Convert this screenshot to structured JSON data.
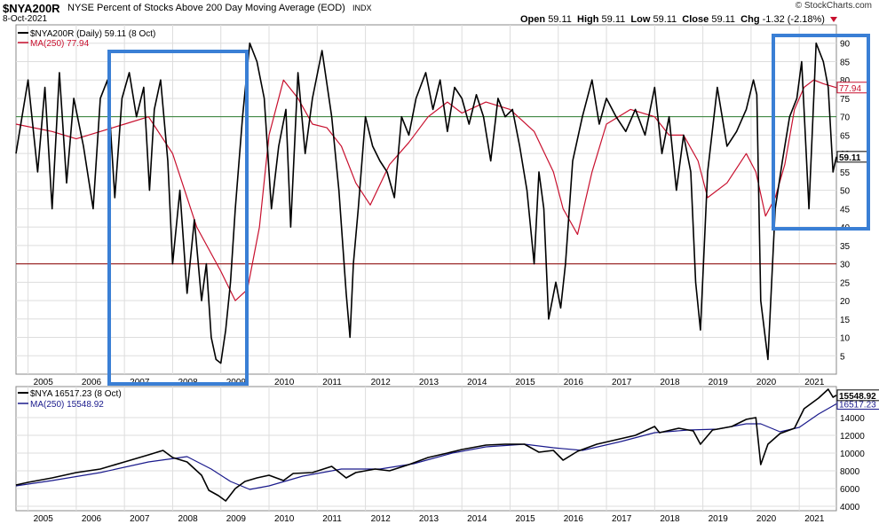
{
  "header": {
    "symbol": "$NYA200R",
    "description": "NYSE Percent of Stocks Above 200 Day Moving Average (EOD)",
    "exchange": "INDX",
    "date": "8-Oct-2021",
    "logo": "© StockCharts.com",
    "open_label": "Open",
    "open": "59.11",
    "high_label": "High",
    "high": "59.11",
    "low_label": "Low",
    "low": "59.11",
    "close_label": "Close",
    "close": "59.11",
    "chg_label": "Chg",
    "chg": "-1.32 (-2.18%)"
  },
  "top_legend": {
    "series": "$NYA200R (Daily) 59.11 (8 Oct)",
    "ma": "MA(250) 77.94"
  },
  "bottom_legend": {
    "series": "$NYA 16517.23 (8 Oct)",
    "ma": "MA(250) 15548.92"
  },
  "colors": {
    "series": "#000000",
    "ma_top": "#c8102e",
    "ma_bottom": "#1a1a8c",
    "ref_70": "#2e7d32",
    "ref_30": "#8b0000",
    "annotation_box": "#3a7fd5",
    "grid": "#dddddd"
  },
  "chart_data": [
    {
      "type": "line",
      "title": "$NYA200R NYSE Percent of Stocks Above 200 Day Moving Average (EOD)",
      "ylim": [
        0,
        95
      ],
      "y_ticks": [
        5,
        10,
        15,
        20,
        25,
        30,
        35,
        40,
        45,
        50,
        55,
        60,
        65,
        70,
        75,
        80,
        85,
        90
      ],
      "x_ticks": [
        "2005",
        "2006",
        "2007",
        "2008",
        "2009",
        "2010",
        "2011",
        "2012",
        "2013",
        "2014",
        "2015",
        "2016",
        "2017",
        "2018",
        "2019",
        "2020",
        "2021"
      ],
      "reference_lines": [
        70,
        30
      ],
      "last_value_labels": [
        "77.94",
        "59.11"
      ],
      "series": [
        {
          "name": "$NYA200R",
          "x": [
            2004.75,
            2005.0,
            2005.2,
            2005.35,
            2005.5,
            2005.65,
            2005.8,
            2005.95,
            2006.15,
            2006.35,
            2006.5,
            2006.65,
            2006.8,
            2006.95,
            2007.1,
            2007.25,
            2007.4,
            2007.52,
            2007.62,
            2007.75,
            2007.9,
            2008.0,
            2008.15,
            2008.3,
            2008.45,
            2008.6,
            2008.7,
            2008.8,
            2008.9,
            2009.0,
            2009.1,
            2009.2,
            2009.3,
            2009.45,
            2009.6,
            2009.75,
            2009.9,
            2010.05,
            2010.2,
            2010.35,
            2010.45,
            2010.6,
            2010.75,
            2010.9,
            2011.1,
            2011.3,
            2011.45,
            2011.6,
            2011.68,
            2011.75,
            2011.85,
            2012.0,
            2012.15,
            2012.3,
            2012.45,
            2012.6,
            2012.75,
            2012.9,
            2013.05,
            2013.25,
            2013.4,
            2013.55,
            2013.7,
            2013.85,
            2014.0,
            2014.15,
            2014.3,
            2014.45,
            2014.6,
            2014.75,
            2014.9,
            2015.05,
            2015.2,
            2015.35,
            2015.5,
            2015.6,
            2015.7,
            2015.8,
            2015.95,
            2016.05,
            2016.15,
            2016.3,
            2016.5,
            2016.7,
            2016.85,
            2017.0,
            2017.2,
            2017.4,
            2017.6,
            2017.8,
            2018.0,
            2018.15,
            2018.3,
            2018.45,
            2018.6,
            2018.75,
            2018.85,
            2018.95,
            2019.1,
            2019.3,
            2019.5,
            2019.7,
            2019.9,
            2020.05,
            2020.12,
            2020.2,
            2020.35,
            2020.5,
            2020.65,
            2020.8,
            2020.95,
            2021.05,
            2021.2,
            2021.35,
            2021.5,
            2021.6,
            2021.7,
            2021.77
          ],
          "values": [
            60,
            80,
            55,
            78,
            45,
            82,
            52,
            75,
            62,
            45,
            75,
            80,
            48,
            75,
            82,
            70,
            78,
            50,
            72,
            80,
            58,
            30,
            50,
            22,
            42,
            20,
            30,
            10,
            4,
            3,
            12,
            25,
            45,
            70,
            90,
            85,
            75,
            45,
            62,
            72,
            40,
            82,
            60,
            75,
            88,
            70,
            50,
            22,
            10,
            30,
            45,
            70,
            62,
            58,
            55,
            48,
            70,
            65,
            75,
            82,
            72,
            80,
            66,
            78,
            75,
            68,
            76,
            70,
            58,
            75,
            70,
            72,
            62,
            50,
            30,
            55,
            45,
            15,
            25,
            18,
            30,
            58,
            70,
            80,
            68,
            75,
            70,
            66,
            72,
            65,
            78,
            60,
            70,
            50,
            65,
            55,
            25,
            12,
            55,
            78,
            62,
            66,
            72,
            80,
            76,
            20,
            4,
            45,
            58,
            70,
            75,
            85,
            45,
            90,
            85,
            78,
            55,
            59.11
          ]
        },
        {
          "name": "MA(250)",
          "x": [
            2004.75,
            2005.5,
            2006.0,
            2006.5,
            2007.0,
            2007.5,
            2008.0,
            2008.5,
            2009.0,
            2009.3,
            2009.55,
            2009.8,
            2010.0,
            2010.3,
            2010.6,
            2010.9,
            2011.2,
            2011.5,
            2011.8,
            2012.1,
            2012.5,
            2012.9,
            2013.3,
            2013.7,
            2014.0,
            2014.5,
            2015.0,
            2015.5,
            2015.9,
            2016.1,
            2016.4,
            2016.7,
            2017.0,
            2017.5,
            2018.0,
            2018.3,
            2018.6,
            2018.9,
            2019.1,
            2019.5,
            2019.9,
            2020.1,
            2020.3,
            2020.5,
            2020.7,
            2020.9,
            2021.1,
            2021.3,
            2021.5,
            2021.77
          ],
          "values": [
            68,
            66,
            64,
            66,
            68,
            70,
            60,
            40,
            28,
            20,
            23,
            40,
            65,
            80,
            75,
            68,
            67,
            62,
            52,
            46,
            57,
            63,
            70,
            74,
            71,
            74,
            72,
            66,
            55,
            45,
            38,
            55,
            68,
            72,
            70,
            65,
            65,
            58,
            48,
            52,
            60,
            55,
            43,
            48,
            57,
            72,
            78,
            80,
            79,
            77.94
          ]
        }
      ]
    },
    {
      "type": "line",
      "title": "$NYA",
      "ylim": [
        3500,
        17500
      ],
      "y_ticks": [
        4000,
        6000,
        8000,
        10000,
        12000,
        14000
      ],
      "x_ticks": [
        "2005",
        "2006",
        "2007",
        "2008",
        "2009",
        "2010",
        "2011",
        "2012",
        "2013",
        "2014",
        "2015",
        "2016",
        "2017",
        "2018",
        "2019",
        "2020",
        "2021"
      ],
      "last_value_labels": [
        "16517.23",
        "15548.92"
      ],
      "series": [
        {
          "name": "$NYA",
          "x": [
            2004.75,
            2005.0,
            2005.5,
            2006.0,
            2006.5,
            2007.0,
            2007.5,
            2007.8,
            2008.0,
            2008.3,
            2008.6,
            2008.75,
            2008.95,
            2009.1,
            2009.3,
            2009.5,
            2009.75,
            2010.0,
            2010.3,
            2010.5,
            2010.9,
            2011.3,
            2011.6,
            2011.8,
            2012.2,
            2012.5,
            2012.9,
            2013.3,
            2013.7,
            2014.0,
            2014.5,
            2014.9,
            2015.3,
            2015.6,
            2015.9,
            2016.1,
            2016.4,
            2016.8,
            2017.2,
            2017.6,
            2018.0,
            2018.1,
            2018.5,
            2018.8,
            2018.95,
            2019.2,
            2019.6,
            2019.9,
            2020.1,
            2020.2,
            2020.35,
            2020.6,
            2020.9,
            2021.1,
            2021.4,
            2021.6,
            2021.7,
            2021.77
          ],
          "values": [
            6400,
            6700,
            7200,
            7800,
            8200,
            9000,
            9800,
            10300,
            9500,
            9000,
            7500,
            5800,
            5200,
            4600,
            6000,
            6800,
            7200,
            7500,
            6900,
            7700,
            7800,
            8500,
            7200,
            7800,
            8200,
            8000,
            8700,
            9500,
            10000,
            10400,
            10900,
            11000,
            11000,
            10100,
            10300,
            9200,
            10200,
            11000,
            11500,
            12000,
            13000,
            12300,
            12800,
            12500,
            11000,
            12600,
            13000,
            13800,
            14000,
            8700,
            11000,
            12200,
            12800,
            15000,
            16200,
            17200,
            16300,
            16517.23
          ]
        },
        {
          "name": "MA(250)",
          "x": [
            2004.75,
            2005.5,
            2006.5,
            2007.5,
            2008.3,
            2008.8,
            2009.2,
            2009.6,
            2010.0,
            2010.7,
            2011.5,
            2012.3,
            2013.0,
            2013.8,
            2014.5,
            2015.3,
            2015.9,
            2016.5,
            2017.3,
            2018.0,
            2018.7,
            2019.3,
            2019.9,
            2020.2,
            2020.6,
            2021.0,
            2021.4,
            2021.77
          ],
          "values": [
            6300,
            6900,
            7800,
            9000,
            9600,
            8200,
            6800,
            5900,
            6300,
            7400,
            8200,
            8200,
            8800,
            10000,
            10700,
            11000,
            10600,
            10300,
            11300,
            12300,
            12600,
            12700,
            13300,
            13300,
            12400,
            12900,
            14400,
            15548.92
          ]
        }
      ]
    }
  ]
}
